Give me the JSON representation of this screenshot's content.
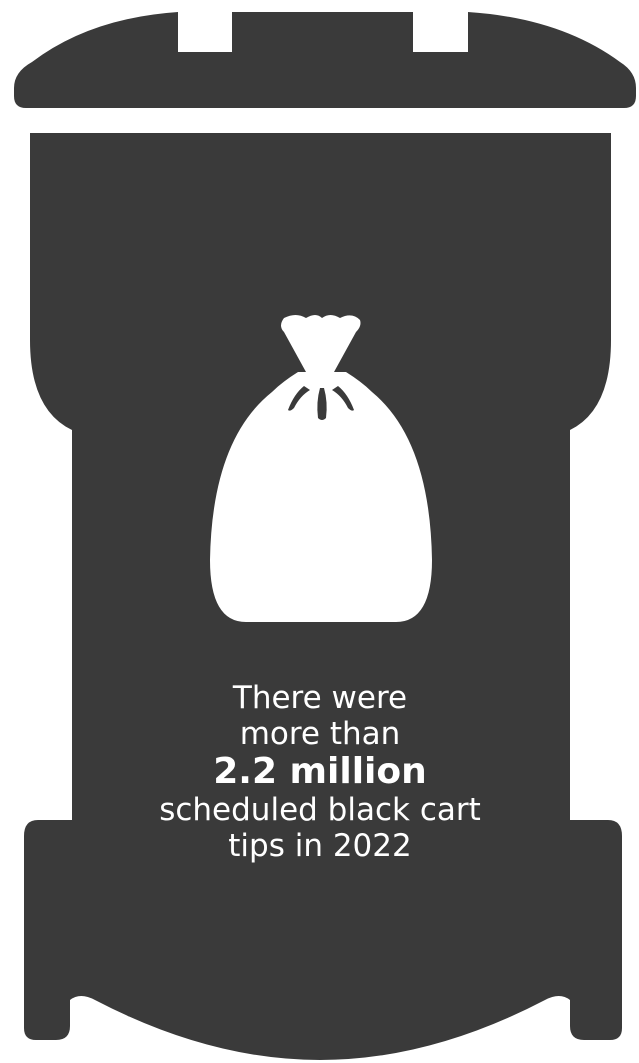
{
  "colors": {
    "cart": "#3a3a3a",
    "background": "#ffffff",
    "icon": "#ffffff",
    "text": "#ffffff"
  },
  "icons": {
    "cart": "black-cart-bin-icon",
    "bag": "garbage-bag-icon"
  },
  "caption": {
    "line1": "There were",
    "line2": "more than",
    "highlight": "2.2 million",
    "line4": "scheduled black cart",
    "line5": "tips in 2022"
  }
}
